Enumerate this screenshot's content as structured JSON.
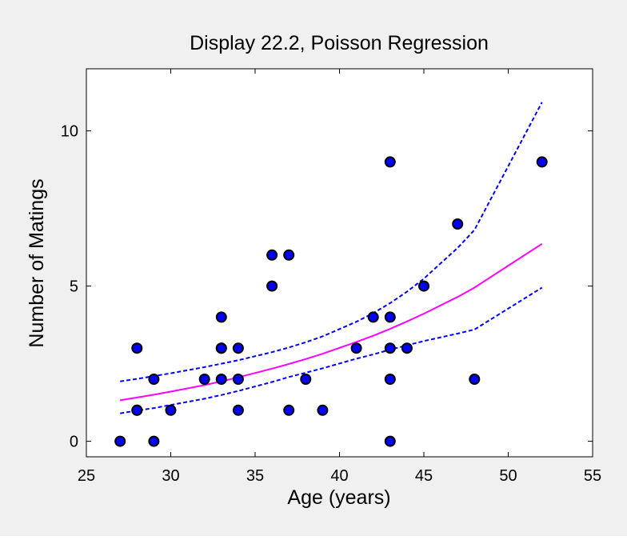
{
  "chart_data": {
    "type": "scatter",
    "title": "Display 22.2, Poisson Regression",
    "xlabel": "Age (years)",
    "ylabel": "Number of Matings",
    "xlim": [
      25,
      55
    ],
    "ylim": [
      -0.5,
      12
    ],
    "xticks": [
      25,
      30,
      35,
      40,
      45,
      50,
      55
    ],
    "yticks": [
      0,
      5,
      10
    ],
    "grid": false,
    "colors": {
      "points": "#0000ff",
      "point_edge": "#000000",
      "fit": "#ff00ff",
      "ci": "#0000ff",
      "axes_bg": "#ffffff",
      "figure_bg": "#f0f0f0"
    },
    "points": [
      {
        "x": 27,
        "y": 0
      },
      {
        "x": 28,
        "y": 1
      },
      {
        "x": 28,
        "y": 1
      },
      {
        "x": 28,
        "y": 3
      },
      {
        "x": 29,
        "y": 0
      },
      {
        "x": 29,
        "y": 2
      },
      {
        "x": 30,
        "y": 1
      },
      {
        "x": 32,
        "y": 2
      },
      {
        "x": 33,
        "y": 4
      },
      {
        "x": 33,
        "y": 3
      },
      {
        "x": 33,
        "y": 3
      },
      {
        "x": 33,
        "y": 2
      },
      {
        "x": 34,
        "y": 1
      },
      {
        "x": 34,
        "y": 2
      },
      {
        "x": 34,
        "y": 3
      },
      {
        "x": 36,
        "y": 5
      },
      {
        "x": 36,
        "y": 6
      },
      {
        "x": 37,
        "y": 1
      },
      {
        "x": 37,
        "y": 6
      },
      {
        "x": 38,
        "y": 2
      },
      {
        "x": 39,
        "y": 1
      },
      {
        "x": 41,
        "y": 3
      },
      {
        "x": 42,
        "y": 4
      },
      {
        "x": 43,
        "y": 0
      },
      {
        "x": 43,
        "y": 2
      },
      {
        "x": 43,
        "y": 3
      },
      {
        "x": 43,
        "y": 4
      },
      {
        "x": 43,
        "y": 9
      },
      {
        "x": 44,
        "y": 3
      },
      {
        "x": 45,
        "y": 5
      },
      {
        "x": 47,
        "y": 7
      },
      {
        "x": 48,
        "y": 2
      },
      {
        "x": 52,
        "y": 9
      }
    ],
    "series": [
      {
        "style": "solid",
        "x": [
          27,
          28,
          29,
          30,
          32,
          33,
          34,
          36,
          37,
          38,
          39,
          41,
          42,
          43,
          44,
          45,
          47,
          48,
          52
        ],
        "y": [
          1.32,
          1.41,
          1.5,
          1.6,
          1.81,
          1.93,
          2.06,
          2.34,
          2.49,
          2.65,
          2.82,
          3.2,
          3.4,
          3.62,
          3.86,
          4.11,
          4.65,
          4.95,
          6.36
        ]
      },
      {
        "style": "dashed",
        "x": [
          27,
          28,
          29,
          30,
          32,
          33,
          34,
          36,
          37,
          38,
          39,
          41,
          42,
          43,
          44,
          45,
          47,
          48,
          52
        ],
        "y": [
          1.93,
          2.01,
          2.1,
          2.19,
          2.39,
          2.5,
          2.61,
          2.87,
          3.02,
          3.19,
          3.38,
          3.85,
          4.13,
          4.45,
          4.82,
          5.24,
          6.23,
          6.81,
          10.92
        ]
      },
      {
        "style": "dashed",
        "x": [
          27,
          28,
          29,
          30,
          32,
          33,
          34,
          36,
          37,
          38,
          39,
          41,
          42,
          43,
          44,
          45,
          47,
          48,
          52
        ],
        "y": [
          0.9,
          0.99,
          1.07,
          1.17,
          1.37,
          1.49,
          1.62,
          1.91,
          2.07,
          2.21,
          2.35,
          2.66,
          2.8,
          2.95,
          3.09,
          3.23,
          3.47,
          3.6,
          4.95
        ]
      }
    ]
  }
}
